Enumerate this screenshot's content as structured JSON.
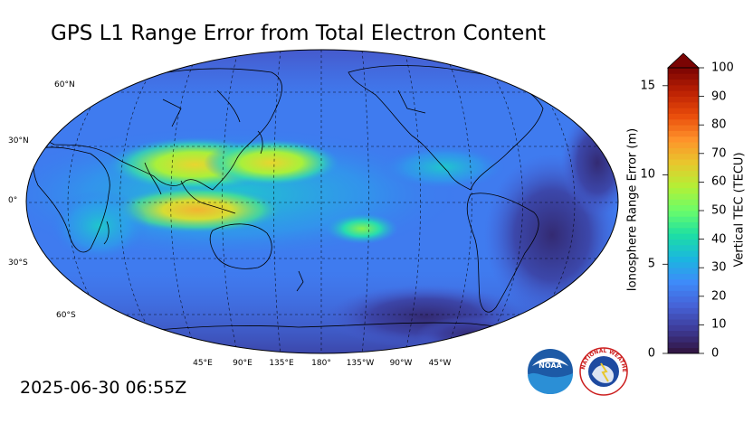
{
  "title": "GPS L1 Range Error from Total Electron Content",
  "timestamp": "2025-06-30 06:55Z",
  "map": {
    "latitude_labels": [
      "60°N",
      "30°N",
      "0°",
      "30°S",
      "60°S"
    ],
    "longitude_labels": [
      "45°E",
      "90°E",
      "135°E",
      "180°",
      "135°W",
      "90°W",
      "45°W"
    ]
  },
  "colorbar": {
    "left_label": "Ionosphere Range Error (m)",
    "right_label": "Vertical TEC (TECU)",
    "left_ticks": [
      "0",
      "5",
      "10",
      "15"
    ],
    "right_ticks": [
      "0",
      "10",
      "20",
      "30",
      "40",
      "50",
      "60",
      "70",
      "80",
      "90",
      "100"
    ],
    "colors": [
      "#30123b",
      "#3d3a96",
      "#4662d7",
      "#3e8bf9",
      "#1ab7df",
      "#1ddfa3",
      "#6afd6a",
      "#b3f036",
      "#e8c72d",
      "#fe922a",
      "#e94c0b",
      "#bb2003",
      "#7a0403"
    ],
    "extend_max": true
  },
  "logos": {
    "noaa_text": "NOAA",
    "nws_text": "NATIONAL WEATHER SERVICE"
  }
}
